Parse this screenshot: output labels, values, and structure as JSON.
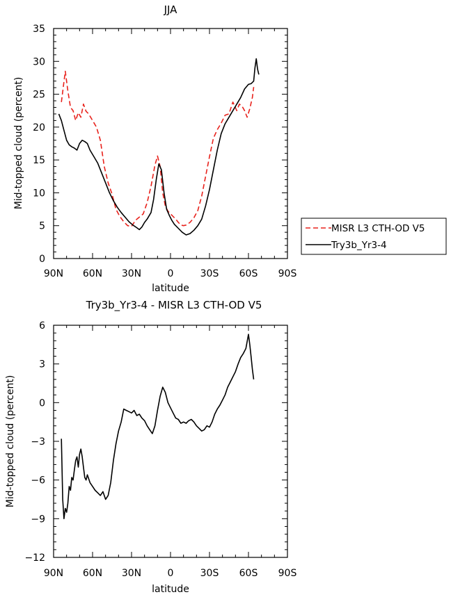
{
  "chart_data": [
    {
      "type": "line",
      "title": "JJA",
      "xlabel": "latitude",
      "ylabel": "Mid-topped cloud (percent)",
      "xlim": [
        90,
        -90
      ],
      "ylim": [
        0,
        35
      ],
      "xticks": [
        90,
        60,
        30,
        0,
        -30,
        -60,
        -90
      ],
      "xtick_labels": [
        "90N",
        "60N",
        "30N",
        "0",
        "30S",
        "60S",
        "90S"
      ],
      "yticks": [
        0,
        5,
        10,
        15,
        20,
        25,
        30,
        35
      ],
      "ytick_labels": [
        "0",
        "5",
        "10",
        "15",
        "20",
        "25",
        "30",
        "35"
      ],
      "legend_position": "right",
      "series": [
        {
          "name": "MISR L3 CTH-OD V5",
          "color": "#e8221c",
          "dashed": true,
          "x": [
            84,
            81,
            79,
            77,
            75,
            73,
            71,
            69,
            67,
            65,
            63,
            60,
            57,
            54,
            51,
            48,
            45,
            42,
            39,
            36,
            33,
            30,
            27,
            24,
            21,
            18,
            15,
            12,
            10,
            8,
            6,
            4,
            2,
            0,
            -2,
            -4,
            -6,
            -8,
            -10,
            -12,
            -15,
            -18,
            -21,
            -24,
            -27,
            -30,
            -33,
            -36,
            -39,
            -42,
            -45,
            -48,
            -51,
            -53,
            -55,
            -57,
            -59,
            -61,
            -63,
            -64
          ],
          "y": [
            23.8,
            28.5,
            25.5,
            23.0,
            22.5,
            21.0,
            22.2,
            21.5,
            23.5,
            22.4,
            22.0,
            21.0,
            20.0,
            18.0,
            14.0,
            11.5,
            9.8,
            7.5,
            6.4,
            5.6,
            5.0,
            4.9,
            5.8,
            6.3,
            6.8,
            8.5,
            11.0,
            14.2,
            15.6,
            14.0,
            10.0,
            8.0,
            7.2,
            6.8,
            6.4,
            6.0,
            5.5,
            5.1,
            5.0,
            5.1,
            5.5,
            6.2,
            7.3,
            9.5,
            12.5,
            15.5,
            18.3,
            19.6,
            20.6,
            21.8,
            22.0,
            23.8,
            22.5,
            23.5,
            23.2,
            22.5,
            21.5,
            22.8,
            24.5,
            26.1
          ]
        },
        {
          "name": "Try3b_Yr3-4",
          "color": "#000000",
          "dashed": false,
          "x": [
            86,
            84,
            82,
            80,
            78,
            76,
            74,
            72,
            70,
            68,
            66,
            64,
            62,
            59,
            56,
            53,
            50,
            47,
            44,
            41,
            38,
            35,
            32,
            29,
            26,
            24,
            22,
            20,
            18,
            15,
            13,
            11,
            9,
            7,
            5,
            3,
            1,
            -1,
            -3,
            -6,
            -9,
            -12,
            -15,
            -18,
            -21,
            -24,
            -27,
            -30,
            -33,
            -36,
            -39,
            -42,
            -45,
            -48,
            -51,
            -54,
            -57,
            -60,
            -62,
            -64,
            -65,
            -66,
            -67,
            -68
          ],
          "y": [
            22.0,
            21.0,
            19.5,
            18.0,
            17.3,
            17.0,
            16.8,
            16.5,
            17.5,
            18.0,
            17.8,
            17.5,
            16.5,
            15.5,
            14.5,
            13.0,
            11.5,
            10.0,
            8.8,
            7.8,
            7.0,
            6.3,
            5.6,
            5.1,
            4.7,
            4.4,
            4.8,
            5.5,
            6.0,
            7.0,
            9.0,
            12.0,
            14.4,
            13.5,
            10.0,
            7.5,
            6.6,
            5.8,
            5.2,
            4.6,
            4.0,
            3.6,
            3.8,
            4.3,
            5.0,
            6.0,
            8.0,
            10.5,
            13.5,
            16.5,
            19.0,
            20.5,
            21.5,
            22.5,
            23.5,
            24.5,
            25.8,
            26.5,
            26.6,
            27.0,
            29.0,
            30.4,
            28.8,
            28.0
          ]
        }
      ]
    },
    {
      "type": "line",
      "title": "Try3b_Yr3-4 - MISR L3 CTH-OD V5",
      "xlabel": "latitude",
      "ylabel": "Mid-topped cloud (percent)",
      "xlim": [
        90,
        -90
      ],
      "ylim": [
        -12,
        6
      ],
      "xticks": [
        90,
        60,
        30,
        0,
        -30,
        -60,
        -90
      ],
      "xtick_labels": [
        "90N",
        "60N",
        "30N",
        "0",
        "30S",
        "60S",
        "90S"
      ],
      "yticks": [
        -12,
        -9,
        -6,
        -3,
        0,
        3,
        6
      ],
      "ytick_labels": [
        "−12",
        "−9",
        "−6",
        "−3",
        "0",
        "3",
        "6"
      ],
      "series": [
        {
          "color": "#000000",
          "dashed": false,
          "x": [
            84,
            83,
            82,
            81,
            80,
            79,
            78,
            77,
            76,
            75,
            74,
            73,
            72,
            71,
            70,
            69,
            68,
            67,
            66,
            65,
            64,
            62,
            60,
            58,
            56,
            54,
            52,
            50,
            48,
            46,
            44,
            42,
            40,
            38,
            36,
            34,
            32,
            30,
            28,
            26,
            24,
            22,
            20,
            18,
            16,
            14,
            12,
            10,
            8,
            6,
            4,
            2,
            0,
            -2,
            -4,
            -6,
            -8,
            -10,
            -12,
            -14,
            -16,
            -18,
            -20,
            -22,
            -24,
            -26,
            -28,
            -30,
            -32,
            -34,
            -36,
            -38,
            -40,
            -42,
            -44,
            -46,
            -48,
            -50,
            -52,
            -54,
            -56,
            -58,
            -60,
            -61,
            -62,
            -63,
            -64
          ],
          "y": [
            -2.8,
            -7.5,
            -9.0,
            -8.2,
            -8.5,
            -7.8,
            -6.5,
            -6.8,
            -5.8,
            -6.0,
            -5.2,
            -4.5,
            -4.2,
            -5.0,
            -4.0,
            -3.6,
            -4.2,
            -5.0,
            -5.8,
            -6.0,
            -5.6,
            -6.2,
            -6.5,
            -6.8,
            -7.0,
            -7.2,
            -6.9,
            -7.5,
            -7.2,
            -6.2,
            -4.5,
            -3.2,
            -2.2,
            -1.5,
            -0.5,
            -0.6,
            -0.7,
            -0.8,
            -0.6,
            -1.0,
            -0.9,
            -1.2,
            -1.4,
            -1.8,
            -2.1,
            -2.4,
            -1.8,
            -0.6,
            0.5,
            1.2,
            0.8,
            0.0,
            -0.4,
            -0.8,
            -1.2,
            -1.3,
            -1.6,
            -1.5,
            -1.6,
            -1.4,
            -1.3,
            -1.5,
            -1.8,
            -2.0,
            -2.2,
            -2.1,
            -1.8,
            -1.9,
            -1.5,
            -0.9,
            -0.5,
            -0.2,
            0.2,
            0.6,
            1.2,
            1.6,
            2.0,
            2.4,
            3.0,
            3.5,
            3.8,
            4.2,
            5.3,
            4.5,
            3.6,
            2.6,
            1.8
          ]
        }
      ]
    }
  ]
}
